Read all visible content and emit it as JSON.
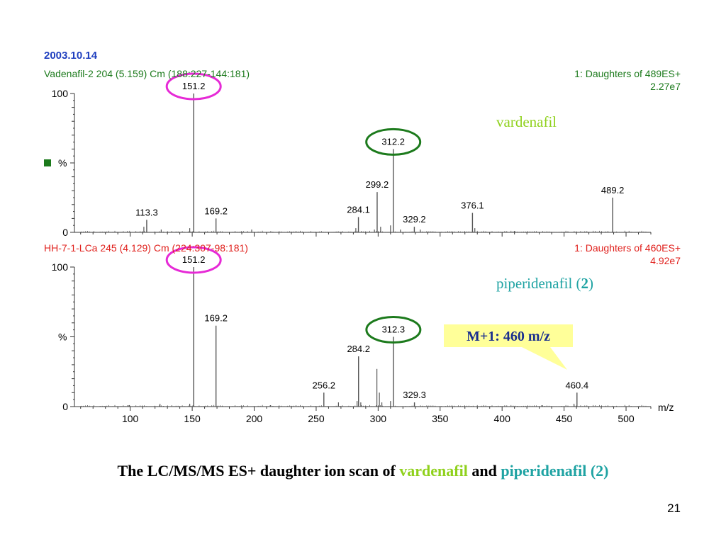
{
  "date": "2003.10.14",
  "slide_number": "21",
  "caption": {
    "part1": "The LC/MS/MS ES+ daughter ion scan of ",
    "compound1": "vardenafil",
    "part2": " and ",
    "compound2": "piperidenafil (2)",
    "color1": "#8fd11c",
    "color2": "#1fa3a3"
  },
  "callout": {
    "text": "M+1: 460 m/z",
    "fill": "#ffff99"
  },
  "colors": {
    "ring_magenta": "#e62ad6",
    "ring_green": "#1c7a1c",
    "trace": "#555555"
  },
  "chart_data": [
    {
      "type": "line",
      "title": "Vadenafil-2 204 (5.159) Cm (188:227-144:181)",
      "title_color": "#1c7a1c",
      "scan": "1: Daughters of 489ES+",
      "intensity": "2.27e7",
      "annotation": "vardenafil",
      "annotation_color": "#8fd11c",
      "ylabel": "%",
      "ylim": [
        0,
        100
      ],
      "y_tick_labels": [
        "0",
        "100"
      ],
      "xlim": [
        55,
        520
      ],
      "peaks": [
        {
          "mz": 113.3,
          "intensity": 9,
          "label": "113.3"
        },
        {
          "mz": 151.2,
          "intensity": 100,
          "label": "151.2"
        },
        {
          "mz": 169.2,
          "intensity": 10,
          "label": "169.2"
        },
        {
          "mz": 284.1,
          "intensity": 11,
          "label": "284.1"
        },
        {
          "mz": 299.2,
          "intensity": 29,
          "label": "299.2"
        },
        {
          "mz": 312.2,
          "intensity": 60,
          "label": "312.2"
        },
        {
          "mz": 329.2,
          "intensity": 4,
          "label": "329.2"
        },
        {
          "mz": 376.1,
          "intensity": 14,
          "label": "376.1"
        },
        {
          "mz": 489.2,
          "intensity": 25,
          "label": "489.2"
        }
      ],
      "minor_peaks": [
        [
          111,
          4
        ],
        [
          125,
          2
        ],
        [
          148,
          3
        ],
        [
          198,
          2
        ],
        [
          282,
          3
        ],
        [
          297,
          2
        ],
        [
          302,
          4
        ],
        [
          310,
          5
        ],
        [
          318,
          2
        ],
        [
          334,
          2
        ],
        [
          378,
          3
        ],
        [
          410,
          1
        ]
      ],
      "rings": [
        {
          "mz": 151.2,
          "color": "magenta"
        },
        {
          "mz": 312.2,
          "color": "green"
        }
      ]
    },
    {
      "type": "line",
      "title": "HH-7-1-LCa 245 (4.129) Cm (224:307-98:181)",
      "title_color": "#e0201c",
      "scan": "1: Daughters of 460ES+",
      "intensity": "4.92e7",
      "annotation": "piperidenafil (",
      "annotation_bold": "2",
      "annotation_end": ")",
      "annotation_color": "#1fa3a3",
      "ylabel": "%",
      "ylim": [
        0,
        100
      ],
      "y_tick_labels": [
        "0",
        "100"
      ],
      "xlim": [
        55,
        520
      ],
      "xlabel": "m/z",
      "x_ticks": [
        100,
        150,
        200,
        250,
        300,
        350,
        400,
        450,
        500
      ],
      "peaks": [
        {
          "mz": 151.2,
          "intensity": 100,
          "label": "151.2"
        },
        {
          "mz": 169.2,
          "intensity": 58,
          "label": "169.2"
        },
        {
          "mz": 256.2,
          "intensity": 10,
          "label": "256.2"
        },
        {
          "mz": 284.2,
          "intensity": 36,
          "label": "284.2"
        },
        {
          "mz": 312.3,
          "intensity": 50,
          "label": "312.3"
        },
        {
          "mz": 329.3,
          "intensity": 3,
          "label": "329.3"
        },
        {
          "mz": 460.4,
          "intensity": 10,
          "label": "460.4"
        }
      ],
      "minor_peaks": [
        [
          99,
          1
        ],
        [
          124,
          2
        ],
        [
          148,
          2
        ],
        [
          213,
          1
        ],
        [
          268,
          3
        ],
        [
          283,
          4
        ],
        [
          286,
          3
        ],
        [
          299,
          27
        ],
        [
          301,
          10
        ],
        [
          303,
          3
        ],
        [
          310,
          4
        ],
        [
          432,
          1
        ],
        [
          458,
          2
        ]
      ],
      "rings": [
        {
          "mz": 151.2,
          "color": "magenta"
        },
        {
          "mz": 312.3,
          "color": "green"
        }
      ]
    }
  ]
}
